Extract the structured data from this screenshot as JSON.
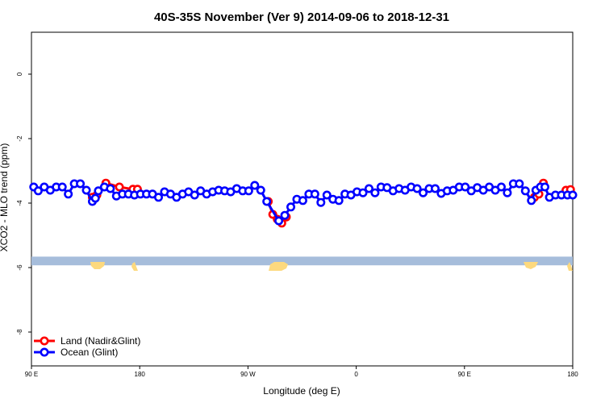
{
  "chart_data": {
    "type": "line",
    "title": "40S-35S November (Ver 9)   2014-09-06 to 2018-12-31",
    "xlabel": "Longitude (deg E)",
    "ylabel": "XCO2 - MLO trend (ppm)",
    "xlim": [
      90,
      450
    ],
    "ylim": [
      -9.05,
      1.3
    ],
    "x_ticks": [
      {
        "value": 90,
        "label": "90 E"
      },
      {
        "value": 162,
        "label": "180"
      },
      {
        "value": 234,
        "label": "90 W"
      },
      {
        "value": 306,
        "label": "0"
      },
      {
        "value": 378,
        "label": "90 E"
      },
      {
        "value": 450,
        "label": "180"
      }
    ],
    "y_ticks": [
      {
        "value": 0,
        "label": "0"
      },
      {
        "value": -2,
        "label": "-2"
      },
      {
        "value": -4,
        "label": "-4"
      },
      {
        "value": -6,
        "label": "-6"
      },
      {
        "value": -8,
        "label": "-8"
      }
    ],
    "grid": false,
    "legend_position": "bottom-left",
    "map_strip": {
      "y_top": -5.66,
      "y_bottom": -5.93,
      "ocean_color": "#a6bddb",
      "land_color": "#fdd97e"
    },
    "series": [
      {
        "name": "Land (Nadir&Glint)",
        "color": "#ff0000",
        "segments": [
          {
            "x": [
              130.5,
              133.5
            ],
            "y": [
              -3.82,
              -3.75
            ]
          },
          {
            "x": [
              139.5,
              148.5,
              157.5,
              160.5
            ],
            "y": [
              -3.38,
              -3.5,
              -3.57,
              -3.57
            ]
          },
          {
            "x": [
              247.5,
              250.5,
              253.5,
              256.5,
              259.5
            ],
            "y": [
              -3.95,
              -4.35,
              -4.5,
              -4.62,
              -4.43
            ]
          },
          {
            "x": [
              424.5,
              427.5,
              430.5
            ],
            "y": [
              -3.82,
              -3.72,
              -3.38
            ]
          },
          {
            "x": [
              445.5,
              448.5
            ],
            "y": [
              -3.6,
              -3.58
            ]
          }
        ]
      },
      {
        "name": "Ocean (Glint)",
        "color": "#0000ff",
        "x": [
          91.5,
          94.5,
          98.5,
          102.5,
          106.5,
          110.5,
          114.5,
          118.5,
          122.5,
          126.5,
          130.5,
          132.5,
          134.5,
          138.5,
          142.5,
          146.5,
          150.5,
          154.5,
          158.5,
          162.5,
          166.5,
          170.5,
          174.5,
          178.5,
          182.5,
          186.5,
          190.5,
          194.5,
          198.5,
          202.5,
          206.5,
          210.5,
          214.5,
          218.5,
          222.5,
          226.5,
          230.5,
          234.5,
          238.5,
          242.5,
          246.5,
          254.5,
          258.5,
          262.5,
          266.5,
          270.5,
          274.5,
          278.5,
          282.5,
          286.5,
          290.5,
          294.5,
          298.5,
          302.5,
          306.5,
          310.5,
          314.5,
          318.5,
          322.5,
          326.5,
          330.5,
          334.5,
          338.5,
          342.5,
          346.5,
          350.5,
          354.5,
          358.5,
          362.5,
          366.5,
          370.5,
          374.5,
          378.5,
          382.5,
          386.5,
          390.5,
          394.5,
          398.5,
          402.5,
          406.5,
          410.5,
          414.5,
          418.5,
          422.5,
          425.5,
          428.5,
          431.5,
          434.5,
          438.5,
          442.5,
          446.5,
          450
        ],
        "y": [
          -3.5,
          -3.62,
          -3.5,
          -3.6,
          -3.5,
          -3.5,
          -3.72,
          -3.4,
          -3.4,
          -3.6,
          -3.95,
          -3.85,
          -3.62,
          -3.5,
          -3.55,
          -3.78,
          -3.72,
          -3.72,
          -3.75,
          -3.72,
          -3.72,
          -3.72,
          -3.82,
          -3.65,
          -3.72,
          -3.82,
          -3.72,
          -3.65,
          -3.75,
          -3.62,
          -3.72,
          -3.65,
          -3.6,
          -3.62,
          -3.65,
          -3.55,
          -3.62,
          -3.62,
          -3.45,
          -3.6,
          -3.95,
          -4.55,
          -4.38,
          -4.12,
          -3.88,
          -3.92,
          -3.72,
          -3.72,
          -3.98,
          -3.75,
          -3.88,
          -3.92,
          -3.72,
          -3.75,
          -3.65,
          -3.68,
          -3.55,
          -3.68,
          -3.5,
          -3.52,
          -3.62,
          -3.55,
          -3.6,
          -3.5,
          -3.55,
          -3.68,
          -3.55,
          -3.55,
          -3.7,
          -3.62,
          -3.6,
          -3.5,
          -3.5,
          -3.62,
          -3.52,
          -3.6,
          -3.5,
          -3.6,
          -3.5,
          -3.68,
          -3.4,
          -3.4,
          -3.62,
          -3.92,
          -3.6,
          -3.5,
          -3.5,
          -3.82,
          -3.75,
          -3.75,
          -3.75,
          -3.75
        ]
      }
    ]
  }
}
